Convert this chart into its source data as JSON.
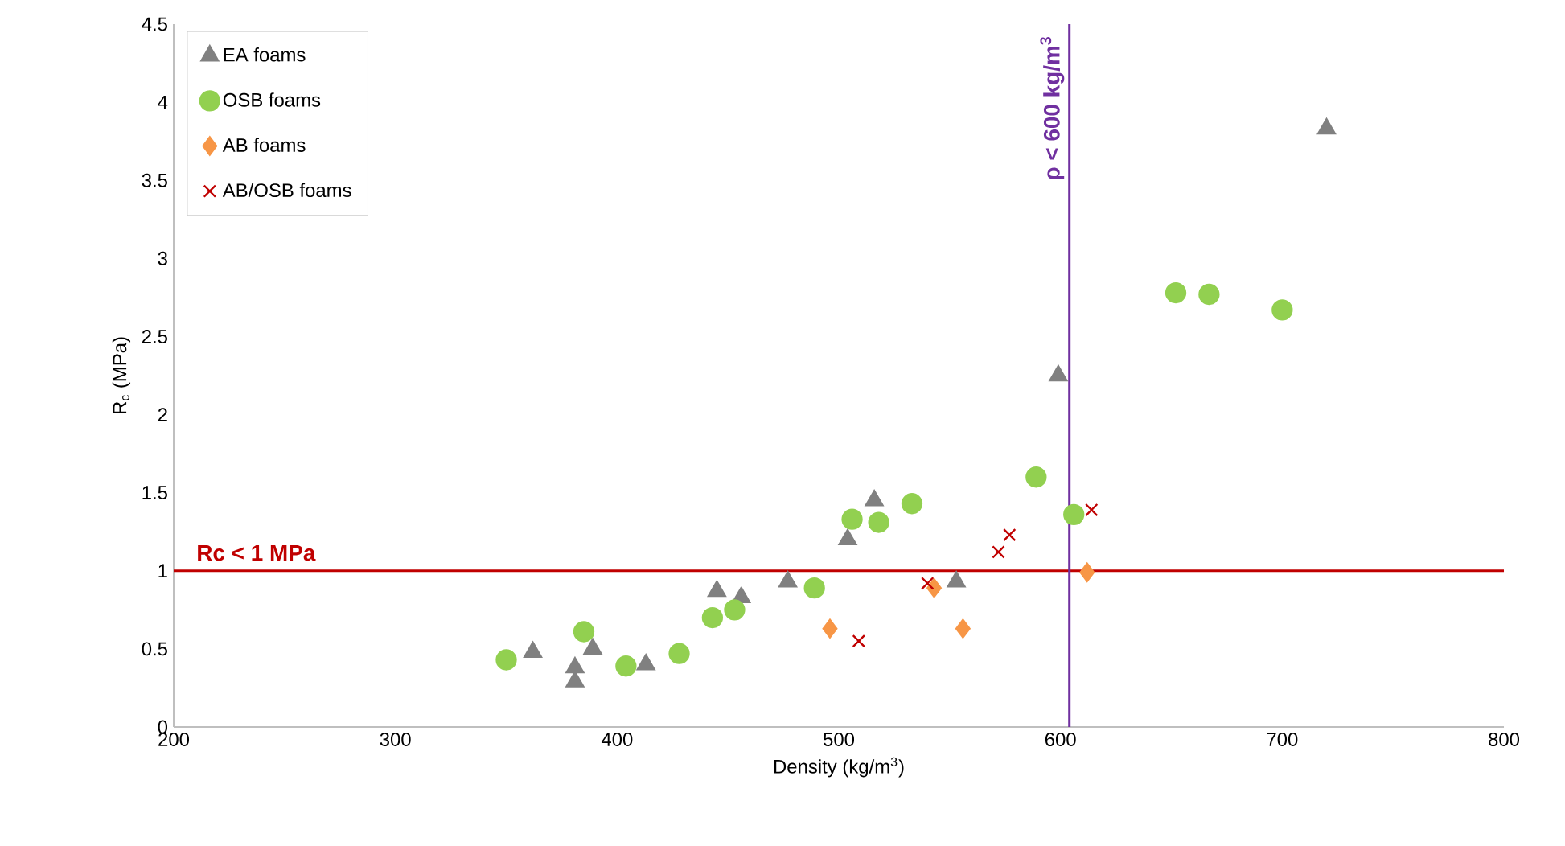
{
  "chart_data": {
    "type": "scatter",
    "xlabel": "Density (kg/m$^{3}$)",
    "ylabel": "R$_{c}$ (MPa)",
    "xlim": [
      200,
      800
    ],
    "xticks": [
      200,
      300,
      400,
      500,
      600,
      700,
      800
    ],
    "ylim": [
      0,
      4.5
    ],
    "yticks": [
      0,
      0.5,
      1,
      1.5,
      2,
      2.5,
      3,
      3.5,
      4,
      4.5
    ],
    "grid": false,
    "legend": "top left",
    "series": [
      {
        "name": "EA foams",
        "color": "#808080",
        "marker": "triangle",
        "x": [
          362,
          381,
          381,
          389,
          413,
          445,
          456,
          477,
          504,
          516,
          553,
          599,
          720
        ],
        "values": [
          0.48,
          0.38,
          0.29,
          0.5,
          0.4,
          0.87,
          0.83,
          0.93,
          1.2,
          1.45,
          0.93,
          2.25,
          3.83
        ]
      },
      {
        "name": "OSB foams",
        "color": "#92d050",
        "marker": "circle",
        "x": [
          350,
          385,
          404,
          428,
          443,
          453,
          489,
          506,
          518,
          533,
          589,
          606,
          652,
          667,
          700
        ],
        "values": [
          0.43,
          0.61,
          0.39,
          0.47,
          0.7,
          0.75,
          0.89,
          1.33,
          1.31,
          1.43,
          1.6,
          1.36,
          2.78,
          2.77,
          2.67
        ]
      },
      {
        "name": "AB foams",
        "color": "#f79646",
        "marker": "diamond",
        "x": [
          496,
          543,
          556,
          612
        ],
        "values": [
          0.63,
          0.89,
          0.63,
          0.99
        ]
      },
      {
        "name": "AB/OSB foams",
        "color": "#c00000",
        "marker": "cross",
        "x": [
          509,
          540,
          572,
          577,
          614
        ],
        "values": [
          0.55,
          0.92,
          1.12,
          1.23,
          1.39
        ]
      }
    ],
    "ref_lines": [
      {
        "axis": "y",
        "value": 1,
        "label": "Rc < 1 MPa",
        "color": "#c00000"
      },
      {
        "axis": "x",
        "value": 604,
        "label": "ρ < 600 kg/m$^{3}$",
        "color": "#7030a0"
      }
    ]
  }
}
